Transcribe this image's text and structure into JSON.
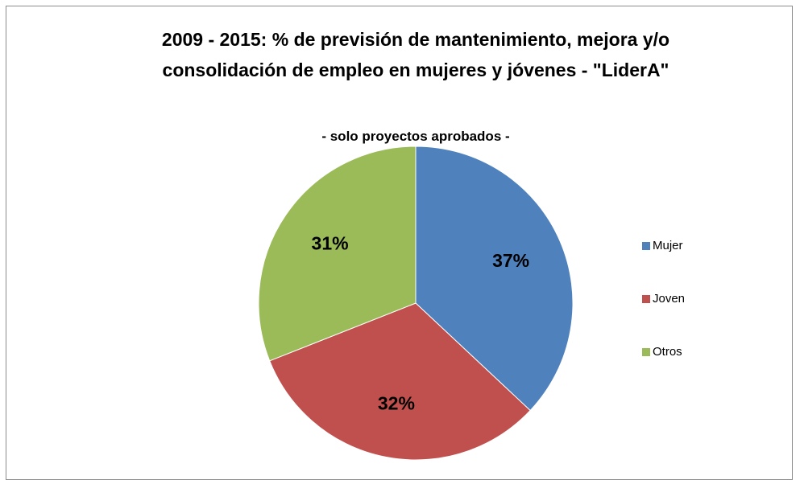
{
  "chart_data": {
    "type": "pie",
    "title": "2009 - 2015: %  de previsión de mantenimiento, mejora y/o consolidación de empleo en mujeres y jóvenes - \"LiderA\"",
    "subtitle": "- solo proyectos aprobados -",
    "categories": [
      "Mujer",
      "Joven",
      "Otros"
    ],
    "values": [
      37,
      32,
      31
    ],
    "value_labels": [
      "37%",
      "32%",
      "31%"
    ],
    "colors": [
      "#4f81bd",
      "#c0504d",
      "#9bbb59"
    ],
    "legend": "right"
  }
}
